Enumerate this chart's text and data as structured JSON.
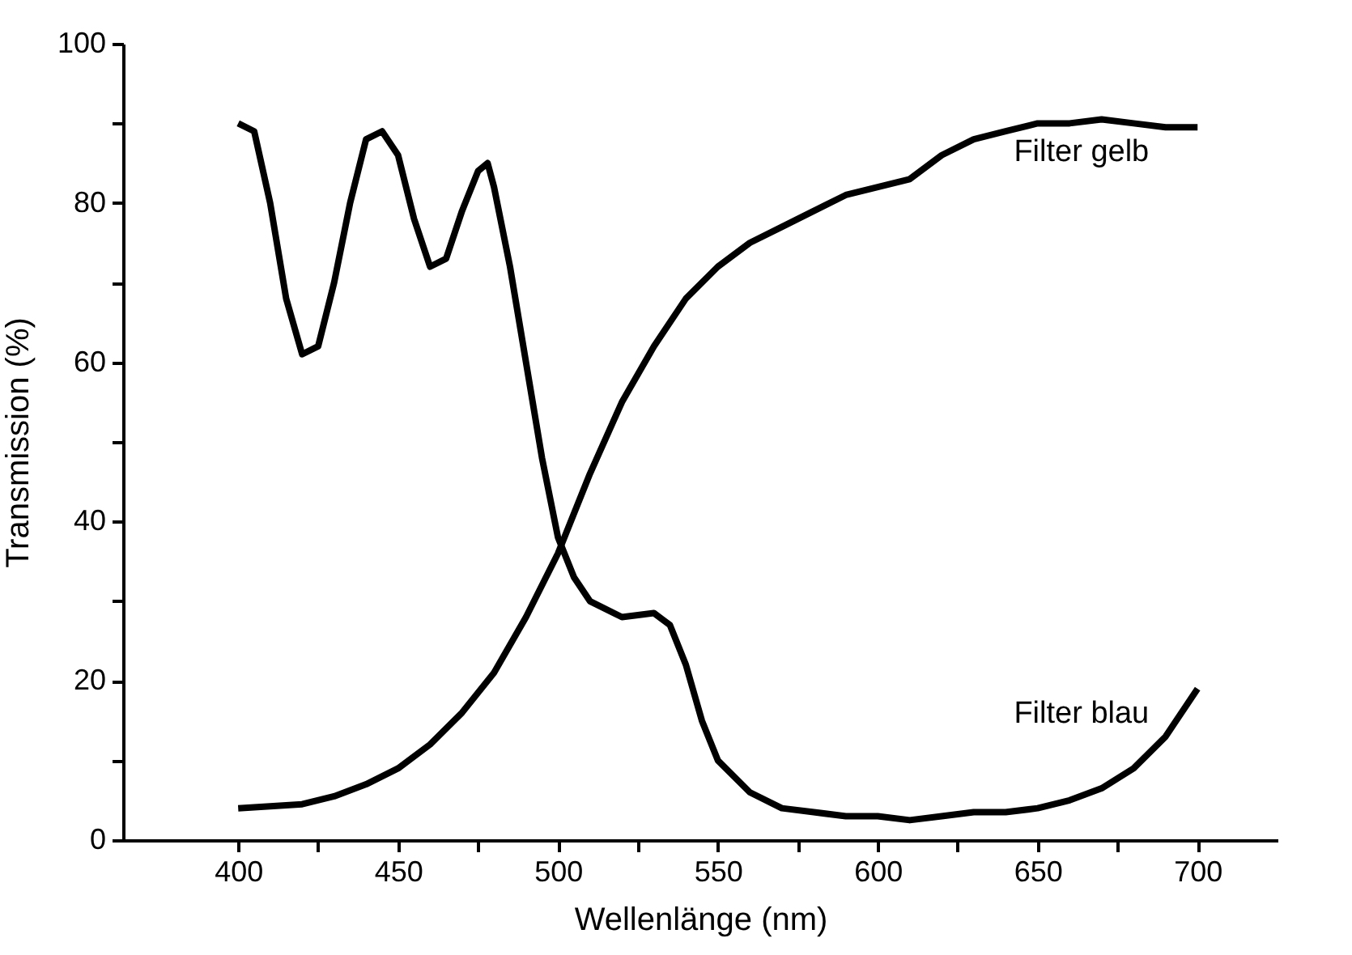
{
  "chart_data": {
    "type": "line",
    "xlabel": "Wellenlänge (nm)",
    "ylabel": "Transmission (%)",
    "xlim": [
      364,
      725
    ],
    "ylim": [
      0,
      100
    ],
    "xticks": [
      400,
      {
        "value": 425,
        "label": null
      },
      450,
      {
        "value": 475,
        "label": null
      },
      500,
      {
        "value": 525,
        "label": null
      },
      550,
      {
        "value": 575,
        "label": null
      },
      600,
      {
        "value": 625,
        "label": null
      },
      650,
      {
        "value": 675,
        "label": null
      },
      700
    ],
    "yticks": [
      0,
      {
        "value": 10,
        "label": null
      },
      20,
      {
        "value": 30,
        "label": null
      },
      40,
      {
        "value": 50,
        "label": null
      },
      60,
      {
        "value": 70,
        "label": null
      },
      80,
      {
        "value": 90,
        "label": null
      },
      100
    ],
    "grid": false,
    "legend": false,
    "marker": "none",
    "line_style": "solid",
    "series": [
      {
        "name": "Filter gelb",
        "color": "#000000",
        "x": [
          400,
          420,
          430,
          440,
          450,
          460,
          470,
          480,
          490,
          500,
          510,
          520,
          530,
          540,
          550,
          560,
          570,
          580,
          590,
          600,
          610,
          620,
          630,
          640,
          650,
          660,
          670,
          680,
          690,
          700
        ],
        "values": [
          4,
          4.5,
          5.5,
          7,
          9,
          12,
          16,
          21,
          28,
          36,
          46,
          55,
          62,
          68,
          72,
          75,
          77,
          79,
          81,
          82,
          83,
          86,
          88,
          89,
          90,
          90,
          90.5,
          90,
          89.5,
          89.5
        ]
      },
      {
        "name": "Filter blau",
        "color": "#000000",
        "x": [
          400,
          405,
          410,
          415,
          420,
          425,
          430,
          435,
          440,
          445,
          450,
          455,
          460,
          465,
          470,
          475,
          478,
          480,
          485,
          490,
          495,
          500,
          505,
          510,
          520,
          530,
          535,
          540,
          545,
          550,
          560,
          570,
          580,
          590,
          600,
          610,
          620,
          630,
          640,
          650,
          660,
          670,
          680,
          690,
          700
        ],
        "values": [
          90,
          89,
          80,
          68,
          61,
          62,
          70,
          80,
          88,
          89,
          86,
          78,
          72,
          73,
          79,
          84,
          85,
          82,
          72,
          60,
          48,
          38,
          33,
          30,
          28,
          28.5,
          27,
          22,
          15,
          10,
          6,
          4,
          3.5,
          3,
          3,
          2.5,
          3,
          3.5,
          3.5,
          4,
          5,
          6.5,
          9,
          13,
          19
        ]
      }
    ]
  }
}
